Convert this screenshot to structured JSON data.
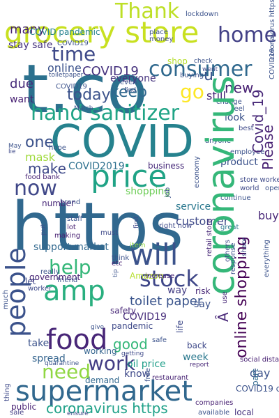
{
  "words": [
    "https",
    "t.co",
    "COVID",
    "coronavirus",
    "grocery store",
    "supermarket",
    "amp",
    "people",
    "food",
    "Thank",
    "consumer",
    "hand sanitizer",
    "price",
    "will",
    "now",
    "time",
    "help",
    "stock",
    "home",
    "work",
    "need",
    "one",
    "go",
    "new",
    "u",
    "keep",
    "today",
    "due",
    "going",
    "see",
    "Covid_19",
    "online shopping",
    "COVID19",
    "Please",
    "coronavirus https",
    "shopping",
    "toilet paper",
    "customer",
    "make",
    "day",
    "online",
    "many",
    "good",
    "take",
    "spread",
    "week",
    "know",
    "buy",
    "product",
    "way",
    "say",
    "COVID2019",
    "business",
    "mask",
    "Â",
    "food bank",
    "employee",
    "store worker",
    "COVID pandemic",
    "shop",
    "everyone",
    "still",
    "look",
    "want",
    "support market",
    "government",
    "pandemic",
    "working",
    "demand",
    "retail",
    "local",
    "COVID19 coronavirus",
    "part",
    "back",
    "social distancing",
    "thing",
    "public",
    "sale",
    "ensure",
    "available",
    "companies",
    "report",
    "restaurant",
    "quarantine",
    "free",
    "getting",
    "staff",
    "lot",
    "making",
    "must",
    "oil price",
    "coronavirus pandemic",
    "retail store",
    "SocialDistancing",
    "hour",
    "use",
    "response",
    "virus",
    "worker",
    "really",
    "let",
    "friend",
    "tip",
    "love",
    "Amazon",
    "etc",
    "increase",
    "think",
    "right now",
    "item",
    "great",
    "order",
    "others",
    "life",
    "state",
    "risk",
    "safe",
    "service",
    "number",
    "brand",
    "put",
    "first",
    "health",
    "economy",
    "continue",
    "protect",
    "world",
    "open",
    "May",
    "lie",
    "March",
    "place",
    "money",
    "buying",
    "went",
    "lockdown",
    "check",
    "hope",
    "stay safe",
    "best",
    "feel",
    "change",
    "anyone",
    "came",
    "even",
    "find",
    "live",
    "UK",
    "around",
    "essential",
    "every",
    "stay",
    "impact",
    "sanitizer",
    "Covid_19",
    "community",
    "important",
    "give",
    "much",
    "mean",
    "via",
    "job",
    "share",
    "everything",
    "store employee",
    "helping",
    "toiletpaper",
    "businesses",
    "without",
    "country",
    "provide",
    "come",
    "call",
    "made",
    "Read",
    "safety",
    "coronaviru",
    "COVID19",
    "itÂ s",
    "donÂ t",
    "IÂ m",
    "ShopRite",
    "coronavirus abe",
    "CoronaCrisis",
    "closed",
    "supermarket shelf",
    "year",
    "stop",
    "consumers",
    "Food",
    "look",
    "left",
    "coronavirus"
  ],
  "colors": {
    "background": "#ffffff",
    "palette": [
      "#440154",
      "#482878",
      "#3e4989",
      "#31688e",
      "#26828e",
      "#1f9e89",
      "#35b779",
      "#6ece58",
      "#b5de2b",
      "#fde725"
    ]
  }
}
